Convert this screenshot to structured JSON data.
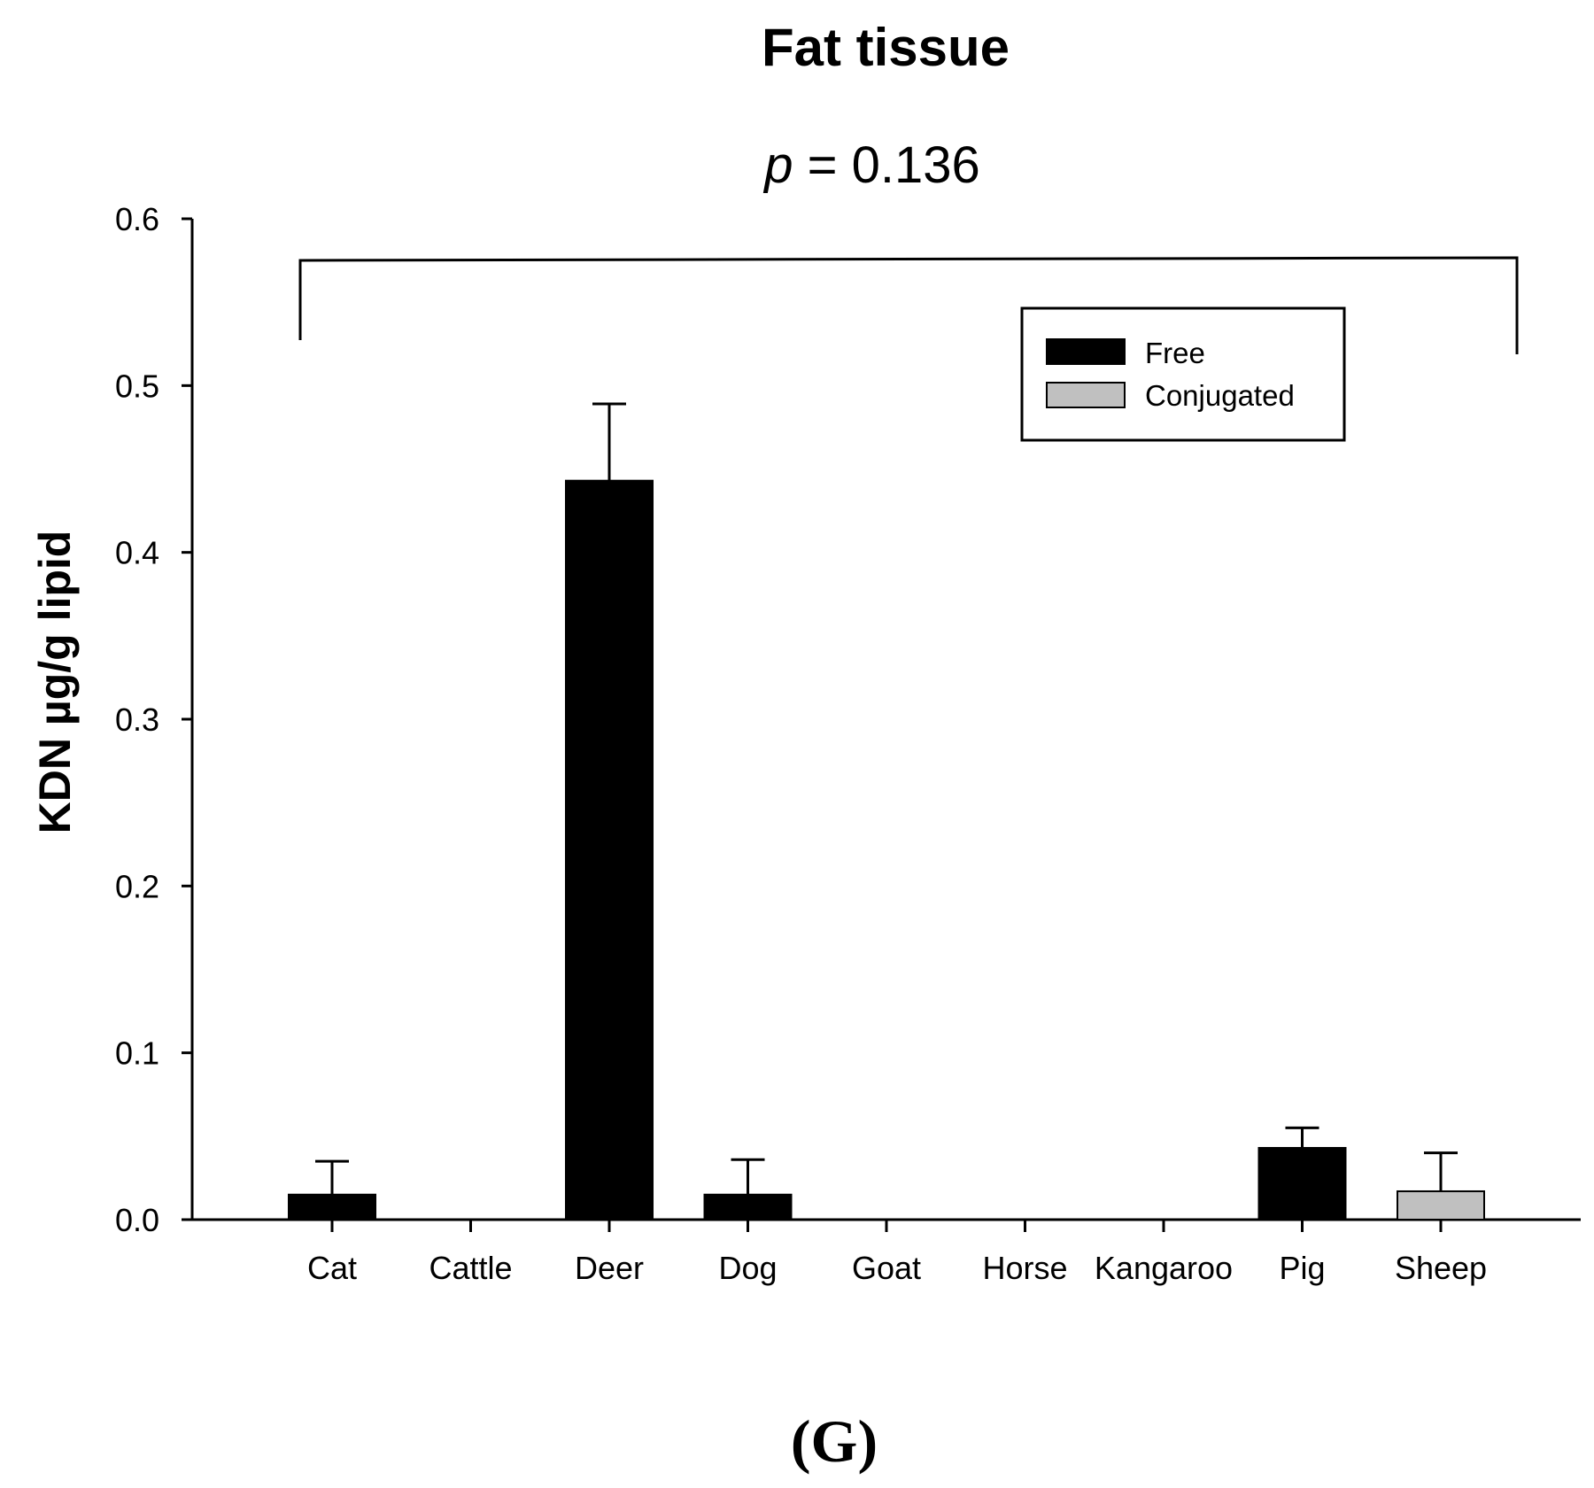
{
  "chart_data": {
    "type": "bar",
    "title": "Fat tissue",
    "annotation": {
      "p_symbol": "p",
      "p_text": " = 0.136"
    },
    "ylabel": "KDN µg/g lipid",
    "xlabel": "",
    "ylim": [
      0,
      0.6
    ],
    "yticks": [
      "0.0",
      "0.1",
      "0.2",
      "0.3",
      "0.4",
      "0.5",
      "0.6"
    ],
    "categories": [
      "Cat",
      "Cattle",
      "Deer",
      "Dog",
      "Goat",
      "Horse",
      "Kangaroo",
      "Pig",
      "Sheep"
    ],
    "series": [
      {
        "name": "Free",
        "color": "#000000",
        "values": [
          0.015,
          0,
          0.443,
          0.015,
          0,
          0,
          0,
          0.043,
          0
        ],
        "errors": [
          0.02,
          0,
          0.046,
          0.021,
          0,
          0,
          0,
          0.012,
          0
        ]
      },
      {
        "name": "Conjugated",
        "color": "#c0c0c0",
        "values": [
          0,
          0,
          0,
          0,
          0,
          0,
          0,
          0,
          0.017
        ],
        "errors": [
          0,
          0,
          0,
          0,
          0,
          0,
          0,
          0,
          0.023
        ]
      }
    ],
    "legend": {
      "position": "top-right",
      "entries": [
        "Free",
        "Conjugated"
      ]
    },
    "grid": false
  },
  "panel_label": "(G)"
}
